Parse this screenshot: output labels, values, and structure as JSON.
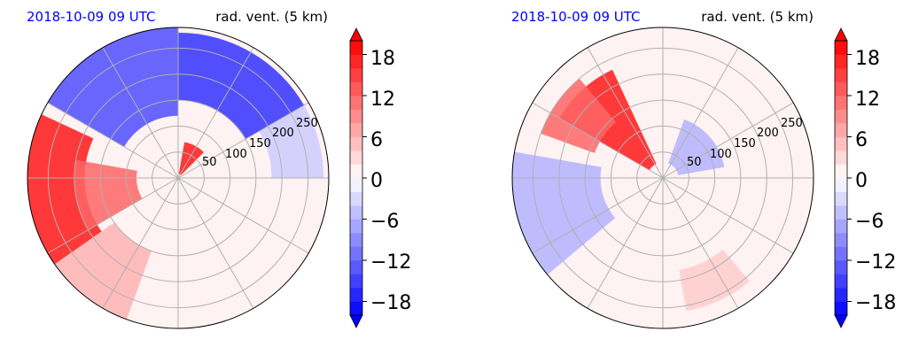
{
  "chart_data": [
    {
      "type": "heatmap",
      "projection": "polar",
      "panel": "left",
      "title_left": "2018-10-09 09 UTC",
      "title_right": "rad. vent. (5 km)",
      "radial_ticks": [
        "50",
        "100",
        "150",
        "200",
        "250"
      ],
      "radial_tick_values": [
        50,
        100,
        150,
        200,
        250
      ],
      "rlim": [
        0,
        290
      ],
      "angular_grid_step_deg": 30,
      "grid": true,
      "colorbar": {
        "ticks": [
          -18,
          -12,
          -6,
          0,
          6,
          12,
          18
        ],
        "tick_labels": [
          "−18",
          "−12",
          "−6",
          "0",
          "6",
          "12",
          "18"
        ],
        "vmin": -20,
        "vmax": 20,
        "levels": 20,
        "colormap": "bwr",
        "extend": "both",
        "placement": "right"
      },
      "features": [
        {
          "sign": "positive",
          "value": 18,
          "az_start": 235,
          "az_end": 295,
          "r_start": 180,
          "r_end": 290
        },
        {
          "sign": "positive",
          "value": 12,
          "az_start": 240,
          "az_end": 280,
          "r_start": 80,
          "r_end": 200
        },
        {
          "sign": "positive",
          "value": 18,
          "az_start": 10,
          "az_end": 45,
          "r_start": 8,
          "r_end": 70
        },
        {
          "sign": "positive",
          "value": 6,
          "az_start": 200,
          "az_end": 235,
          "r_start": 150,
          "r_end": 290
        },
        {
          "sign": "negative",
          "value": -14,
          "az_start": 300,
          "az_end": 360,
          "r_start": 120,
          "r_end": 290
        },
        {
          "sign": "negative",
          "value": -16,
          "az_start": 0,
          "az_end": 60,
          "r_start": 150,
          "r_end": 280
        },
        {
          "sign": "negative",
          "value": -4,
          "az_start": 60,
          "az_end": 90,
          "r_start": 180,
          "r_end": 280
        }
      ]
    },
    {
      "type": "heatmap",
      "projection": "polar",
      "panel": "right",
      "title_left": "2018-10-09 09 UTC",
      "title_right": "rad. vent. (5 km)",
      "radial_ticks": [
        "50",
        "100",
        "150",
        "200",
        "250"
      ],
      "radial_tick_values": [
        50,
        100,
        150,
        200,
        250
      ],
      "rlim": [
        0,
        290
      ],
      "angular_grid_step_deg": 30,
      "grid": true,
      "colorbar": {
        "ticks": [
          -18,
          -12,
          -6,
          0,
          6,
          12,
          18
        ],
        "tick_labels": [
          "−18",
          "−12",
          "−6",
          "0",
          "6",
          "12",
          "18"
        ],
        "vmin": -20,
        "vmax": 20,
        "levels": 20,
        "colormap": "bwr",
        "extend": "both",
        "placement": "right"
      },
      "features": [
        {
          "sign": "positive",
          "value": 18,
          "az_start": 300,
          "az_end": 335,
          "r_start": 30,
          "r_end": 230
        },
        {
          "sign": "positive",
          "value": 12,
          "az_start": 290,
          "az_end": 320,
          "r_start": 140,
          "r_end": 250
        },
        {
          "sign": "negative",
          "value": -6,
          "az_start": 230,
          "az_end": 280,
          "r_start": 120,
          "r_end": 290
        },
        {
          "sign": "negative",
          "value": -6,
          "az_start": 20,
          "az_end": 80,
          "r_start": 30,
          "r_end": 120
        },
        {
          "sign": "positive",
          "value": 4,
          "az_start": 140,
          "az_end": 170,
          "r_start": 180,
          "r_end": 260
        }
      ]
    }
  ]
}
